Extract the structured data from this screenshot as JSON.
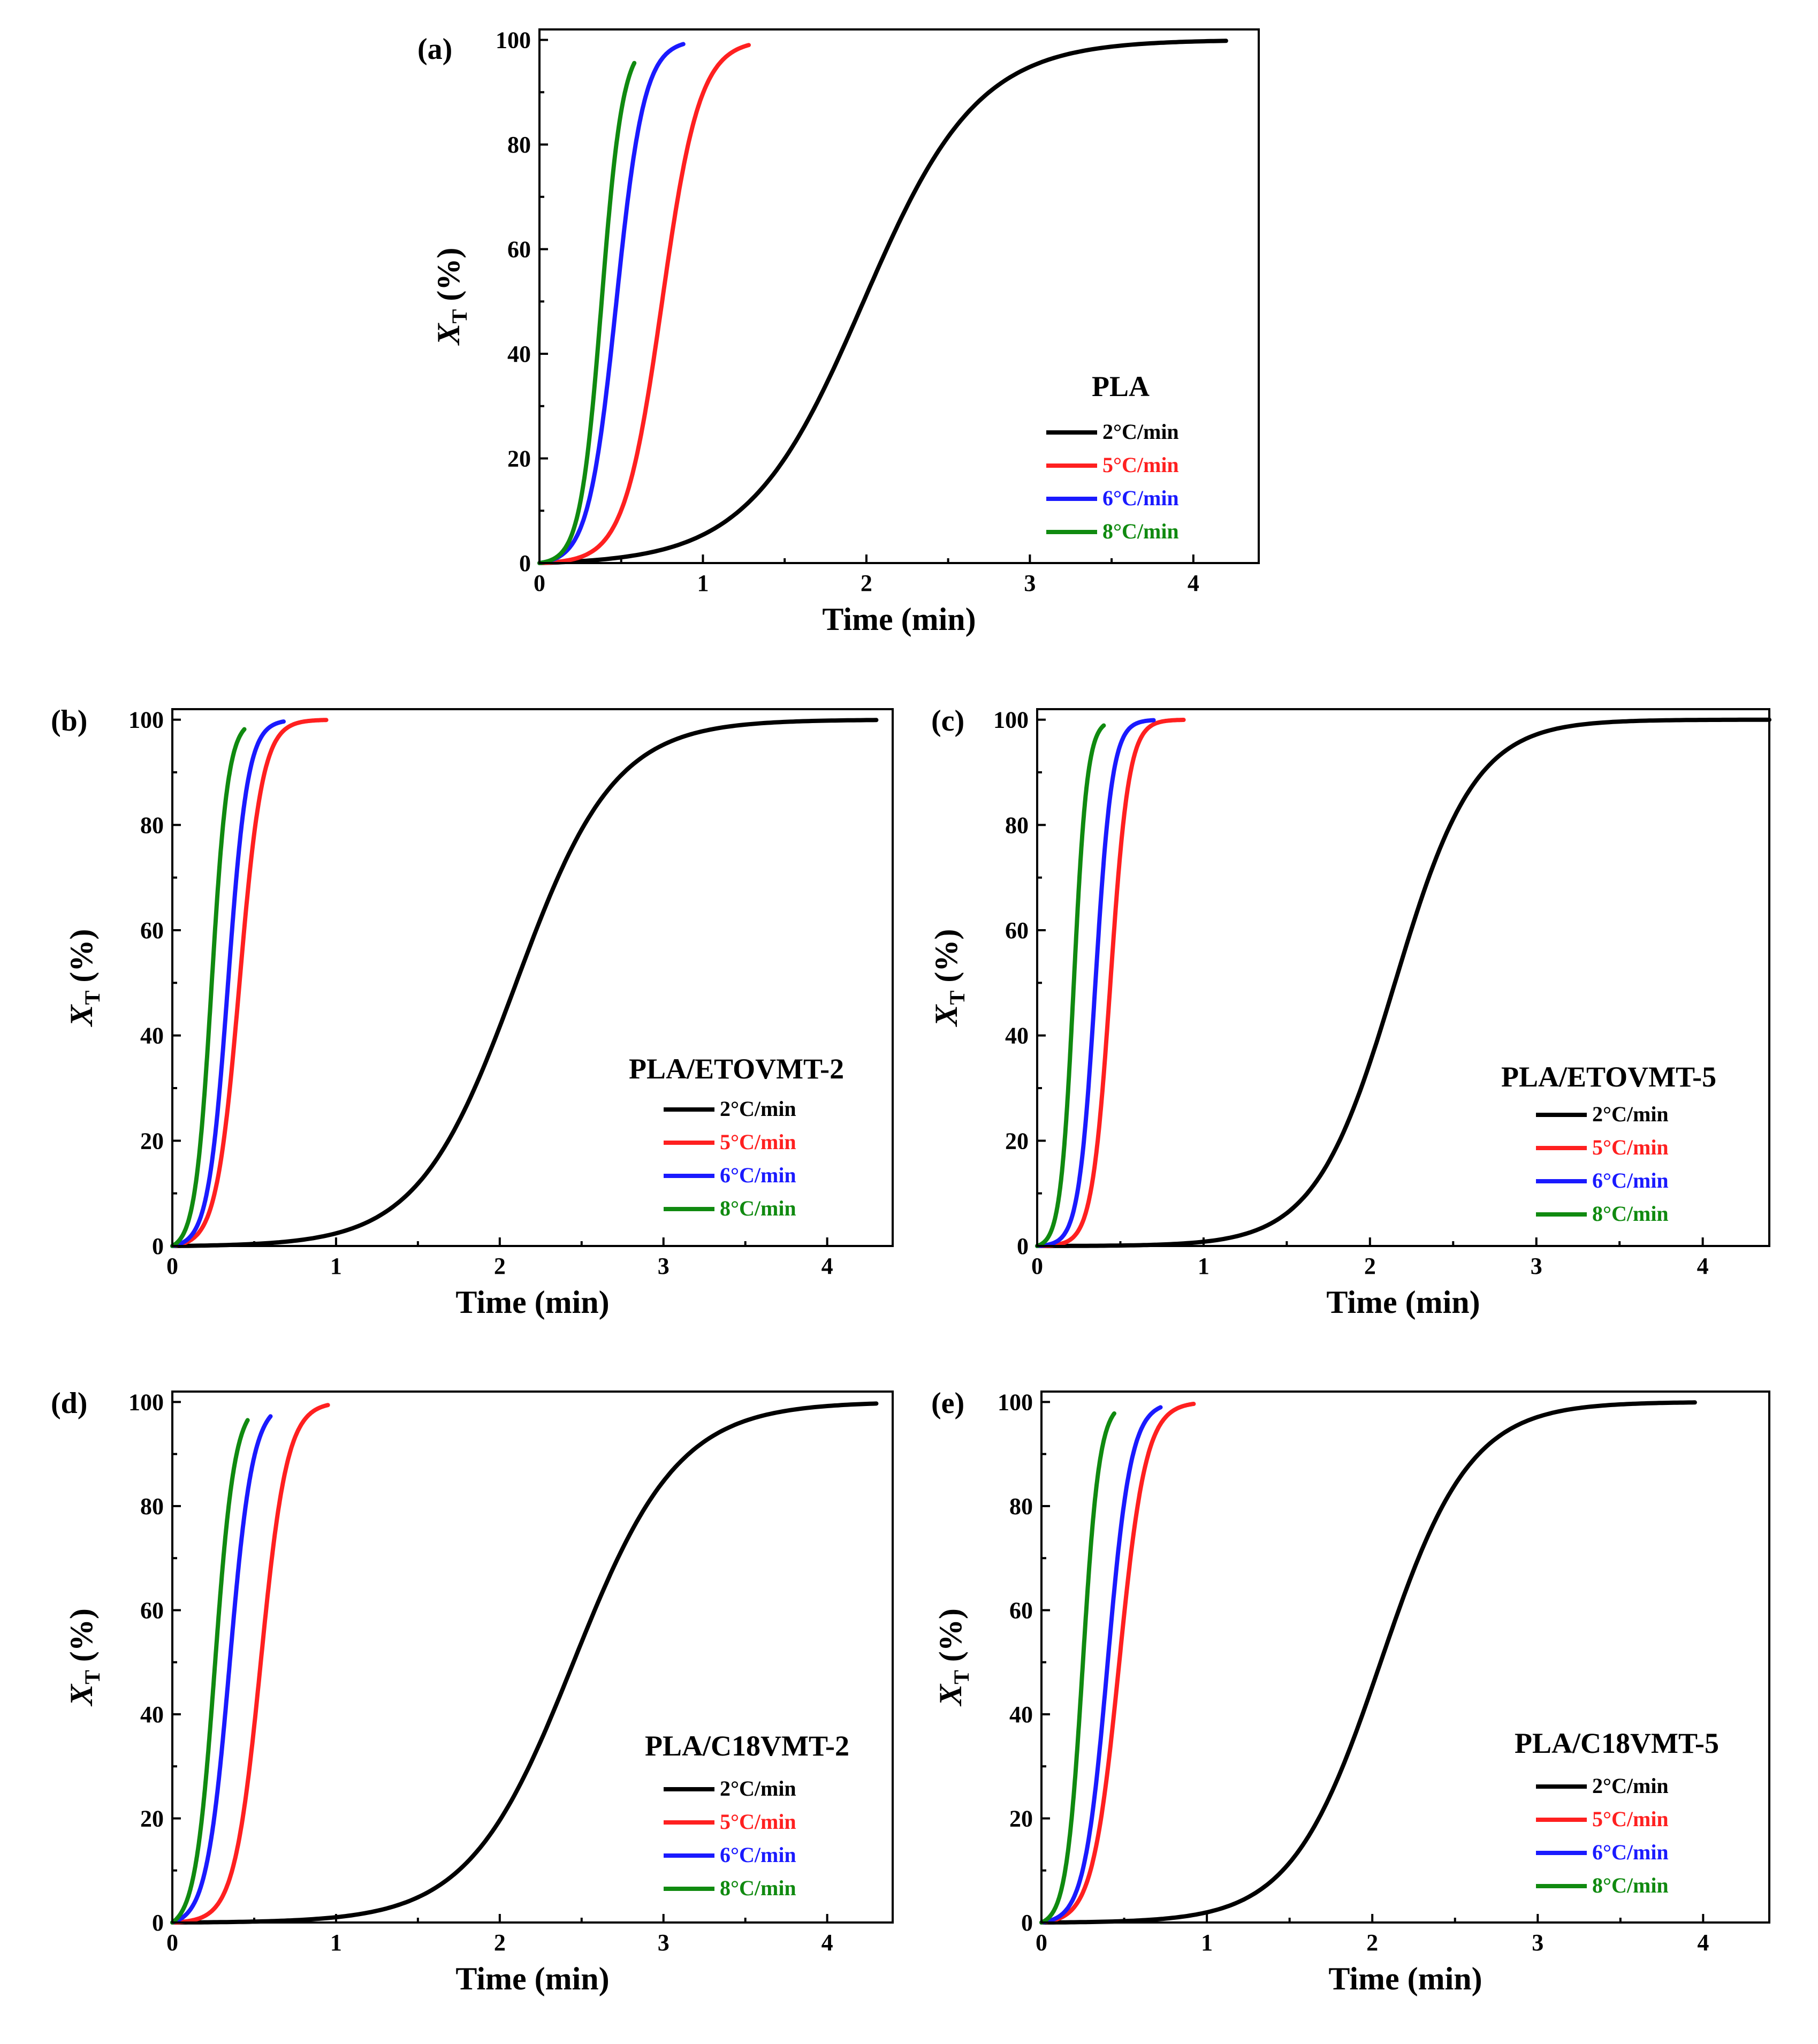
{
  "figure": {
    "background": "#ffffff"
  },
  "chart_data": [
    {
      "type": "line",
      "panel": "(a)",
      "sample": "PLA",
      "xlabel": "Time (min)",
      "ylabel_main": "X",
      "ylabel_sub": "T",
      "ylabel_unit": "(%)",
      "xlim": [
        0,
        4.4
      ],
      "ylim": [
        0,
        102
      ],
      "xticks": [
        "0",
        "1",
        "2",
        "3",
        "4"
      ],
      "yticks": [
        "0",
        "20",
        "40",
        "60",
        "80",
        "100"
      ],
      "series": [
        {
          "name": "2°C/min",
          "color": "#000000",
          "t_half": 1.98,
          "tau": 0.35,
          "t_end": 4.2
        },
        {
          "name": "5°C/min",
          "color": "#ff2020",
          "t_half": 0.75,
          "tau": 0.115,
          "t_end": 1.28
        },
        {
          "name": "6°C/min",
          "color": "#1a1aff",
          "t_half": 0.47,
          "tau": 0.085,
          "t_end": 0.88
        },
        {
          "name": "8°C/min",
          "color": "#108a10",
          "t_half": 0.38,
          "tau": 0.065,
          "t_end": 0.58
        }
      ]
    },
    {
      "type": "line",
      "panel": "(b)",
      "sample": "PLA/ETOVMT-2",
      "xlabel": "Time (min)",
      "ylabel_main": "X",
      "ylabel_sub": "T",
      "ylabel_unit": "(%)",
      "xlim": [
        0,
        4.4
      ],
      "ylim": [
        0,
        102
      ],
      "xticks": [
        "0",
        "1",
        "2",
        "3",
        "4"
      ],
      "yticks": [
        "0",
        "20",
        "40",
        "60",
        "80",
        "100"
      ],
      "series": [
        {
          "name": "2°C/min",
          "color": "#000000",
          "t_half": 2.1,
          "tau": 0.3,
          "t_end": 4.3
        },
        {
          "name": "5°C/min",
          "color": "#ff2020",
          "t_half": 0.41,
          "tau": 0.07,
          "t_end": 0.94
        },
        {
          "name": "6°C/min",
          "color": "#1a1aff",
          "t_half": 0.34,
          "tau": 0.06,
          "t_end": 0.68
        },
        {
          "name": "8°C/min",
          "color": "#108a10",
          "t_half": 0.24,
          "tau": 0.05,
          "t_end": 0.44
        }
      ]
    },
    {
      "type": "line",
      "panel": "(c)",
      "sample": "PLA/ETOVMT-5",
      "xlabel": "Time (min)",
      "ylabel_main": "X",
      "ylabel_sub": "T",
      "ylabel_unit": "(%)",
      "xlim": [
        0,
        4.4
      ],
      "ylim": [
        0,
        102
      ],
      "xticks": [
        "0",
        "1",
        "2",
        "3",
        "4"
      ],
      "yticks": [
        "0",
        "20",
        "40",
        "60",
        "80",
        "100"
      ],
      "series": [
        {
          "name": "2°C/min",
          "color": "#000000",
          "t_half": 2.15,
          "tau": 0.24,
          "t_end": 4.4
        },
        {
          "name": "5°C/min",
          "color": "#ff2020",
          "t_half": 0.44,
          "tau": 0.055,
          "t_end": 0.88
        },
        {
          "name": "6°C/min",
          "color": "#1a1aff",
          "t_half": 0.35,
          "tau": 0.05,
          "t_end": 0.7
        },
        {
          "name": "8°C/min",
          "color": "#108a10",
          "t_half": 0.22,
          "tau": 0.04,
          "t_end": 0.4
        }
      ]
    },
    {
      "type": "line",
      "panel": "(d)",
      "sample": "PLA/C18VMT-2",
      "xlabel": "Time (min)",
      "ylabel_main": "X",
      "ylabel_sub": "T",
      "ylabel_unit": "(%)",
      "xlim": [
        0,
        4.4
      ],
      "ylim": [
        0,
        102
      ],
      "xticks": [
        "0",
        "1",
        "2",
        "3",
        "4"
      ],
      "yticks": [
        "0",
        "20",
        "40",
        "60",
        "80",
        "100"
      ],
      "series": [
        {
          "name": "2°C/min",
          "color": "#000000",
          "t_half": 2.45,
          "tau": 0.32,
          "t_end": 4.3
        },
        {
          "name": "5°C/min",
          "color": "#ff2020",
          "t_half": 0.54,
          "tau": 0.08,
          "t_end": 0.95
        },
        {
          "name": "6°C/min",
          "color": "#1a1aff",
          "t_half": 0.35,
          "tau": 0.07,
          "t_end": 0.6
        },
        {
          "name": "8°C/min",
          "color": "#108a10",
          "t_half": 0.26,
          "tau": 0.06,
          "t_end": 0.46
        }
      ]
    },
    {
      "type": "line",
      "panel": "(e)",
      "sample": "PLA/C18VMT-5",
      "xlabel": "Time (min)",
      "ylabel_main": "X",
      "ylabel_sub": "T",
      "ylabel_unit": "(%)",
      "xlim": [
        0,
        4.4
      ],
      "ylim": [
        0,
        102
      ],
      "xticks": [
        "0",
        "1",
        "2",
        "3",
        "4"
      ],
      "yticks": [
        "0",
        "20",
        "40",
        "60",
        "80",
        "100"
      ],
      "series": [
        {
          "name": "2°C/min",
          "color": "#000000",
          "t_half": 2.05,
          "tau": 0.27,
          "t_end": 3.95
        },
        {
          "name": "5°C/min",
          "color": "#ff2020",
          "t_half": 0.47,
          "tau": 0.08,
          "t_end": 0.92
        },
        {
          "name": "6°C/min",
          "color": "#1a1aff",
          "t_half": 0.4,
          "tau": 0.07,
          "t_end": 0.72
        },
        {
          "name": "8°C/min",
          "color": "#108a10",
          "t_half": 0.25,
          "tau": 0.05,
          "t_end": 0.44
        }
      ]
    }
  ]
}
